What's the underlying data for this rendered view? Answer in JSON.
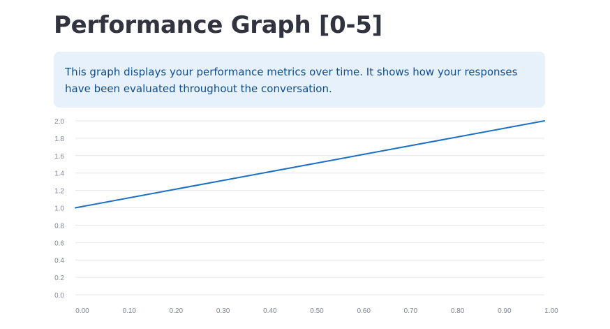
{
  "page": {
    "title": "Performance Graph [0-5]",
    "info": "This graph displays your performance metrics over time. It shows how your responses have been evaluated throughout the conversation."
  },
  "colors": {
    "line": "#1a6fc4",
    "grid": "#e6e6ea",
    "info_bg": "#e6f1fc",
    "info_text": "#0e4d8c",
    "title": "#31333f"
  },
  "chart_data": {
    "type": "line",
    "title": "",
    "xlabel": "",
    "ylabel": "",
    "x": [
      0.0,
      1.0
    ],
    "series": [
      {
        "values": [
          1.0,
          2.0
        ]
      }
    ],
    "xlim": [
      0.0,
      1.0
    ],
    "ylim": [
      0.0,
      2.0
    ],
    "x_ticks": [
      "0.00",
      "0.10",
      "0.20",
      "0.30",
      "0.40",
      "0.50",
      "0.60",
      "0.70",
      "0.80",
      "0.90",
      "1.00"
    ],
    "y_ticks": [
      "0.0",
      "0.2",
      "0.4",
      "0.6",
      "0.8",
      "1.0",
      "1.2",
      "1.4",
      "1.6",
      "1.8",
      "2.0"
    ],
    "grid": true,
    "legend": "none"
  }
}
